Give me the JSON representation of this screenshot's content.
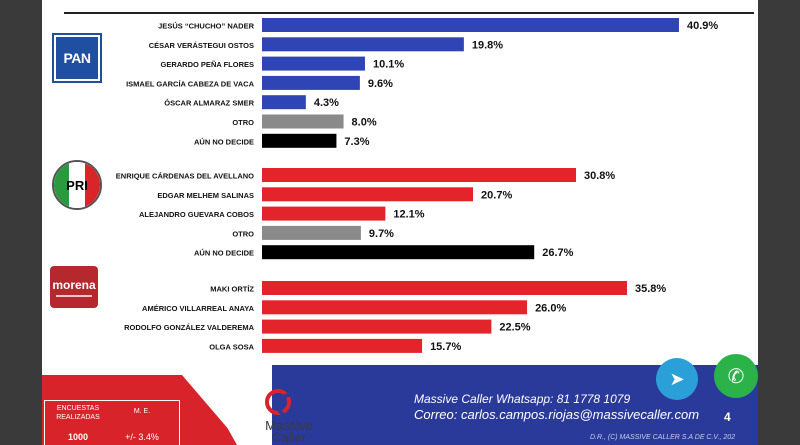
{
  "chart_data": {
    "type": "bar",
    "orientation": "horizontal",
    "groups": [
      {
        "party": "PAN",
        "candidates": [
          {
            "name": "JESÚS “CHUCHO” NADER",
            "value": 40.9,
            "label": "40.9%",
            "color": "#2f45b5"
          },
          {
            "name": "CÉSAR VERÁSTEGUI OSTOS",
            "value": 19.8,
            "label": "19.8%",
            "color": "#2f45b5"
          },
          {
            "name": "GERARDO PEÑA FLORES",
            "value": 10.1,
            "label": "10.1%",
            "color": "#2f45b5"
          },
          {
            "name": "ISMAEL GARCÍA CABEZA DE VACA",
            "value": 9.6,
            "label": "9.6%",
            "color": "#2f45b5"
          },
          {
            "name": "ÓSCAR ALMARAZ SMER",
            "value": 4.3,
            "label": "4.3%",
            "color": "#2f45b5"
          },
          {
            "name": "OTRO",
            "value": 8.0,
            "label": "8.0%",
            "color": "#8a8a8a"
          },
          {
            "name": "AÚN NO DECIDE",
            "value": 7.3,
            "label": "7.3%",
            "color": "#000000"
          }
        ]
      },
      {
        "party": "PRI",
        "candidates": [
          {
            "name": "ENRIQUE CÁRDENAS DEL AVELLANO",
            "value": 30.8,
            "label": "30.8%",
            "color": "#e3242b"
          },
          {
            "name": "EDGAR MELHEM SALINAS",
            "value": 20.7,
            "label": "20.7%",
            "color": "#e3242b"
          },
          {
            "name": "ALEJANDRO GUEVARA COBOS",
            "value": 12.1,
            "label": "12.1%",
            "color": "#e3242b"
          },
          {
            "name": "OTRO",
            "value": 9.7,
            "label": "9.7%",
            "color": "#8a8a8a"
          },
          {
            "name": "AÚN NO DECIDE",
            "value": 26.7,
            "label": "26.7%",
            "color": "#000000"
          }
        ]
      },
      {
        "party": "morena",
        "candidates": [
          {
            "name": "MAKI ORTÍZ",
            "value": 35.8,
            "label": "35.8%",
            "color": "#e3242b"
          },
          {
            "name": "AMÉRICO VILLARREAL ANAYA",
            "value": 26.0,
            "label": "26.0%",
            "color": "#e3242b"
          },
          {
            "name": "RODOLFO GONZÁLEZ VALDEREMA",
            "value": 22.5,
            "label": "22.5%",
            "color": "#e3242b"
          },
          {
            "name": "OLGA SOSA",
            "value": 15.7,
            "label": "15.7%",
            "color": "#e3242b"
          }
        ]
      }
    ],
    "xlim": [
      0,
      41
    ]
  },
  "logos": {
    "pan": "PAN",
    "pri": "PRI",
    "morena": "morena"
  },
  "footer": {
    "whatsapp": "Massive Caller Whatsapp:  81 1778 1079",
    "email": "Correo:  carlos.campos.riojas@massivecaller.com",
    "page_number": "4",
    "copyright": "D.R., (C) MASSIVE CALLER S.A DE C.V., 202",
    "brand": "Massive Caller",
    "survey_label": "ENCUESTAS REALIZADAS",
    "survey_value": "1000",
    "me_label": "M. E.",
    "me_value": "+/- 3.4%",
    "telegram_icon": "telegram-icon",
    "whatsapp_icon": "whatsapp-icon"
  }
}
